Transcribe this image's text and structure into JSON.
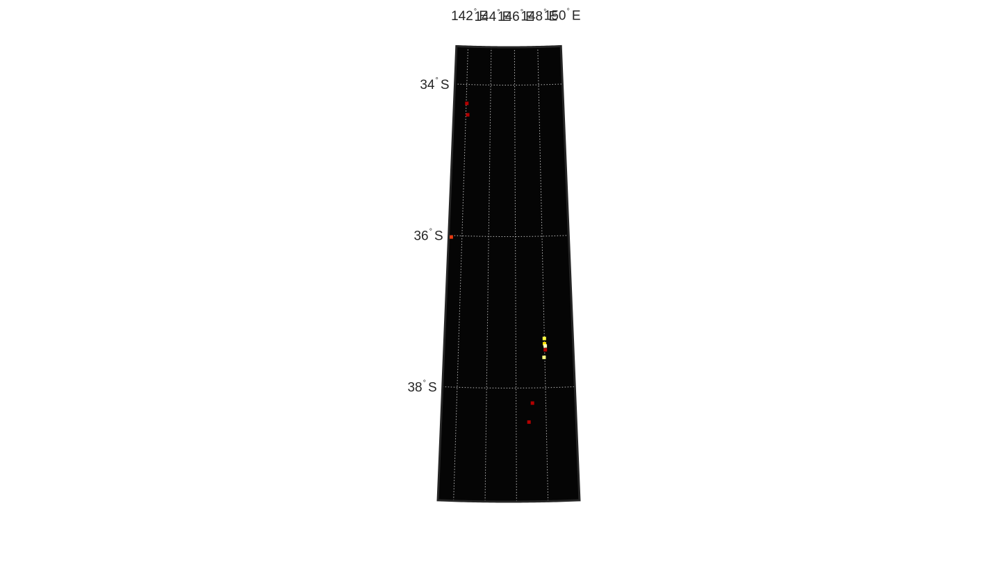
{
  "map": {
    "projection": "conic",
    "background_color": "#050505",
    "frame_color": "#262626",
    "grid_color": "#bdbdbd",
    "grid_style": "dotted",
    "longitude_range": [
      141.0,
      150.0
    ],
    "latitude_range": [
      -39.5,
      -33.5
    ],
    "longitude_ticks": [
      {
        "value": 142,
        "num": "142",
        "deg": "°",
        "hemi": "E"
      },
      {
        "value": 144,
        "num": "144",
        "deg": "°",
        "hemi": "E"
      },
      {
        "value": 146,
        "num": "146",
        "deg": "°",
        "hemi": "E"
      },
      {
        "value": 148,
        "num": "148",
        "deg": "°",
        "hemi": "E"
      },
      {
        "value": 150,
        "num": "150",
        "deg": "°",
        "hemi": "E"
      }
    ],
    "latitude_ticks": [
      {
        "value": -34,
        "num": "34",
        "deg": "°",
        "hemi": "S"
      },
      {
        "value": -36,
        "num": "36",
        "deg": "°",
        "hemi": "S"
      },
      {
        "value": -38,
        "num": "38",
        "deg": "°",
        "hemi": "S"
      }
    ],
    "points": [
      {
        "lon": 142.05,
        "lat": -34.25,
        "color": "#b30000"
      },
      {
        "lon": 142.15,
        "lat": -34.4,
        "color": "#b30000"
      },
      {
        "lon": 141.2,
        "lat": -36.02,
        "color": "#e83a10"
      },
      {
        "lon": 148.0,
        "lat": -37.35,
        "color": "#ffff40"
      },
      {
        "lon": 148.0,
        "lat": -37.42,
        "color": "#ffe000"
      },
      {
        "lon": 148.05,
        "lat": -37.45,
        "color": "#ffffc0"
      },
      {
        "lon": 148.05,
        "lat": -37.5,
        "color": "#b30000"
      },
      {
        "lon": 147.95,
        "lat": -37.6,
        "color": "#ffff80"
      },
      {
        "lon": 147.1,
        "lat": -38.2,
        "color": "#b30000"
      },
      {
        "lon": 146.85,
        "lat": -38.45,
        "color": "#b30000"
      }
    ]
  }
}
